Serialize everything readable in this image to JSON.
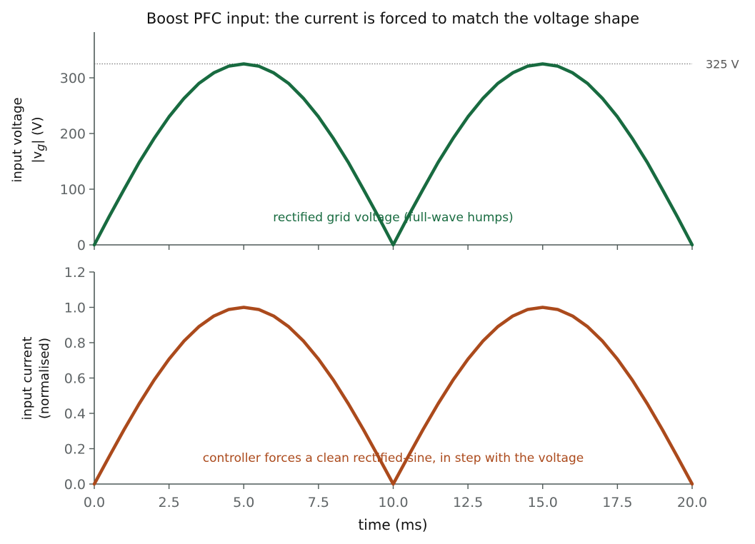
{
  "chart_data": {
    "title": "Boost PFC input: the current is forced to match the voltage shape",
    "xlabel": "time  (ms)",
    "xlim": [
      0,
      20
    ],
    "xticks": [
      "0.0",
      "2.5",
      "5.0",
      "7.5",
      "10.0",
      "12.5",
      "15.0",
      "17.5",
      "20.0"
    ],
    "panels": [
      {
        "type": "line",
        "ylabel_line1": "input voltage",
        "ylabel_line2": "|v",
        "ylabel_sub": "g",
        "ylabel_line2_tail": "|  (V)",
        "ylim": [
          0,
          380
        ],
        "yticks": [
          "0",
          "100",
          "200",
          "300"
        ],
        "grid": false,
        "series": [
          {
            "color": "#186b40",
            "x": [
              0,
              0.5,
              1,
              1.5,
              2,
              2.5,
              3,
              3.5,
              4,
              4.5,
              5,
              5.5,
              6,
              6.5,
              7,
              7.5,
              8,
              8.5,
              9,
              9.5,
              10,
              10.5,
              11,
              11.5,
              12,
              12.5,
              13,
              13.5,
              14,
              14.5,
              15,
              15.5,
              16,
              16.5,
              17,
              17.5,
              18,
              18.5,
              19,
              19.5,
              20
            ],
            "y": [
              0,
              51,
              100,
              148,
              191,
              230,
              263,
              290,
              309,
              321,
              325,
              321,
              309,
              290,
              263,
              230,
              191,
              148,
              100,
              51,
              0,
              51,
              100,
              148,
              191,
              230,
              263,
              290,
              309,
              321,
              325,
              321,
              309,
              290,
              263,
              230,
              191,
              148,
              100,
              51,
              0
            ]
          }
        ],
        "reference_line": {
          "y": 325,
          "label": "325 V"
        },
        "annotation": {
          "text": "rectified grid voltage (full-wave humps)",
          "x": 10,
          "y": 50,
          "color": "#186b40"
        }
      },
      {
        "type": "line",
        "ylabel_line1": "input current",
        "ylabel_line2": "(normalised)",
        "ylim": [
          0,
          1.2
        ],
        "yticks": [
          "0.0",
          "0.2",
          "0.4",
          "0.6",
          "0.8",
          "1.0",
          "1.2"
        ],
        "grid": false,
        "series": [
          {
            "color": "#ab4a1c",
            "x": [
              0,
              0.5,
              1,
              1.5,
              2,
              2.5,
              3,
              3.5,
              4,
              4.5,
              5,
              5.5,
              6,
              6.5,
              7,
              7.5,
              8,
              8.5,
              9,
              9.5,
              10,
              10.5,
              11,
              11.5,
              12,
              12.5,
              13,
              13.5,
              14,
              14.5,
              15,
              15.5,
              16,
              16.5,
              17,
              17.5,
              18,
              18.5,
              19,
              19.5,
              20
            ],
            "y": [
              0,
              0.156,
              0.309,
              0.454,
              0.588,
              0.707,
              0.809,
              0.891,
              0.951,
              0.988,
              1.0,
              0.988,
              0.951,
              0.891,
              0.809,
              0.707,
              0.588,
              0.454,
              0.309,
              0.156,
              0,
              0.156,
              0.309,
              0.454,
              0.588,
              0.707,
              0.809,
              0.891,
              0.951,
              0.988,
              1.0,
              0.988,
              0.951,
              0.891,
              0.809,
              0.707,
              0.588,
              0.454,
              0.309,
              0.156,
              0
            ]
          }
        ],
        "annotation": {
          "text": "controller forces a clean rectified-sine, in step with the voltage",
          "x": 10,
          "y": 0.15,
          "color": "#ab4a1c"
        }
      }
    ]
  }
}
